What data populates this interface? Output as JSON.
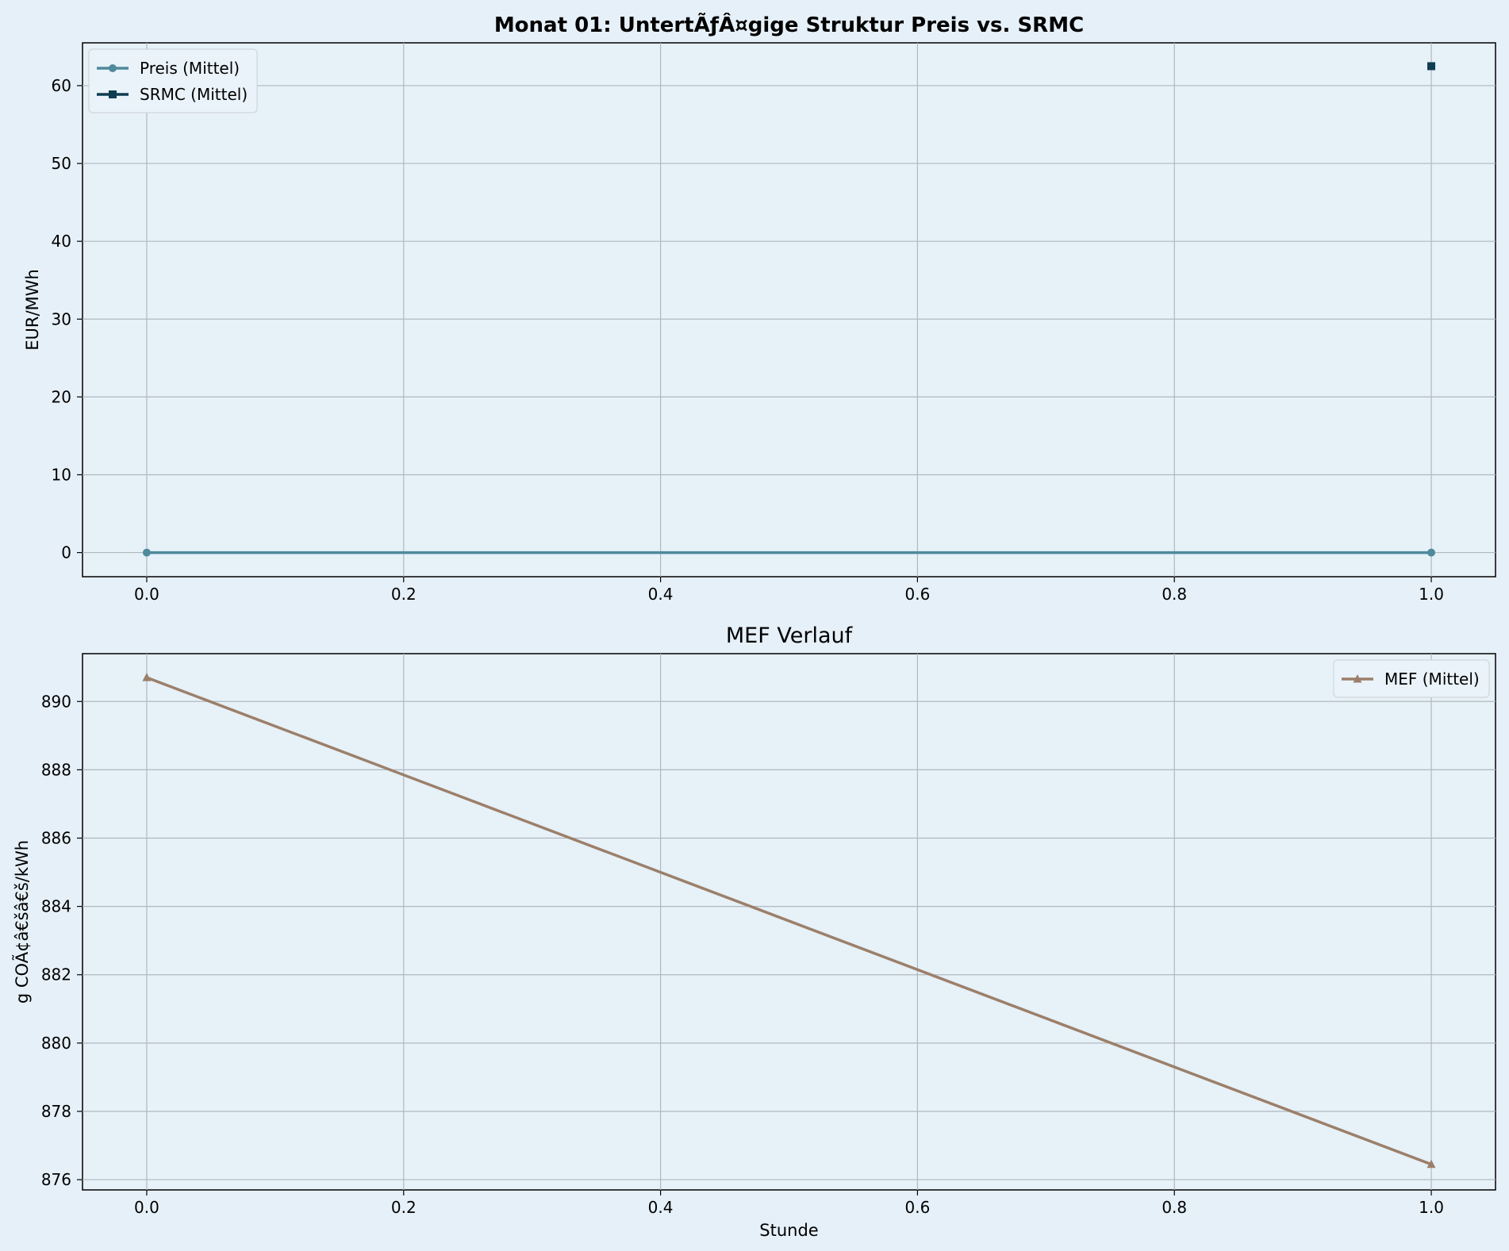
{
  "chart_data": [
    {
      "type": "line",
      "title": "Monat 01: UntertÃƒÂ¤gige Struktur Preis vs. SRMC",
      "xlabel": "",
      "ylabel": "EUR/MWh",
      "xlim": [
        -0.05,
        1.05
      ],
      "ylim": [
        -3.1,
        65.5
      ],
      "xticks": [
        "0.0",
        "0.2",
        "0.4",
        "0.6",
        "0.8",
        "1.0"
      ],
      "yticks": [
        "0",
        "10",
        "20",
        "30",
        "40",
        "50",
        "60"
      ],
      "grid": true,
      "legend": "upper left",
      "series": [
        {
          "name": "Preis (Mittel)",
          "color": "#4e8a9c",
          "marker": "circle",
          "x": [
            0,
            1
          ],
          "y": [
            0,
            0
          ]
        },
        {
          "name": "SRMC (Mittel)",
          "color": "#0f3d52",
          "marker": "square",
          "x": [
            1
          ],
          "y": [
            62.5
          ]
        }
      ]
    },
    {
      "type": "line",
      "title": "MEF Verlauf",
      "xlabel": "Stunde",
      "ylabel": "g COÃ¢â€šâ€š/kWh",
      "xlim": [
        -0.05,
        1.05
      ],
      "ylim": [
        875.7,
        891.4
      ],
      "xticks": [
        "0.0",
        "0.2",
        "0.4",
        "0.6",
        "0.8",
        "1.0"
      ],
      "yticks": [
        "876",
        "878",
        "880",
        "882",
        "884",
        "886",
        "888",
        "890"
      ],
      "grid": true,
      "legend": "upper right",
      "series": [
        {
          "name": "MEF (Mittel)",
          "color": "#9c7f6a",
          "marker": "triangle",
          "x": [
            0,
            1
          ],
          "y": [
            890.7,
            876.45
          ]
        }
      ]
    }
  ]
}
